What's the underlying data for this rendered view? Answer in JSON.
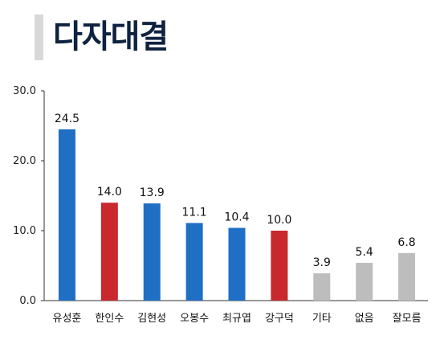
{
  "title": "다자대결",
  "colors": {
    "blue": "#1f6fc5",
    "red": "#c8282e",
    "gray": "#bdbdbd",
    "title": "#0f2340",
    "title_bar": "#d9d9d9"
  },
  "chart_data": {
    "type": "bar",
    "title": "다자대결",
    "xlabel": "",
    "ylabel": "",
    "ylim": [
      0,
      30
    ],
    "yticks": [
      "0.0",
      "10.0",
      "20.0",
      "30.0"
    ],
    "grid": false,
    "categories": [
      "유성훈",
      "한인수",
      "김현성",
      "오봉수",
      "최규엽",
      "강구덕",
      "기타",
      "없음",
      "잘모름"
    ],
    "values": [
      24.5,
      14.0,
      13.9,
      11.1,
      10.4,
      10.0,
      3.9,
      5.4,
      6.8
    ],
    "value_labels": [
      "24.5",
      "14.0",
      "13.9",
      "11.1",
      "10.4",
      "10.0",
      "3.9",
      "5.4",
      "6.8"
    ],
    "bar_colors": [
      "blue",
      "red",
      "blue",
      "blue",
      "blue",
      "red",
      "gray",
      "gray",
      "gray"
    ]
  }
}
